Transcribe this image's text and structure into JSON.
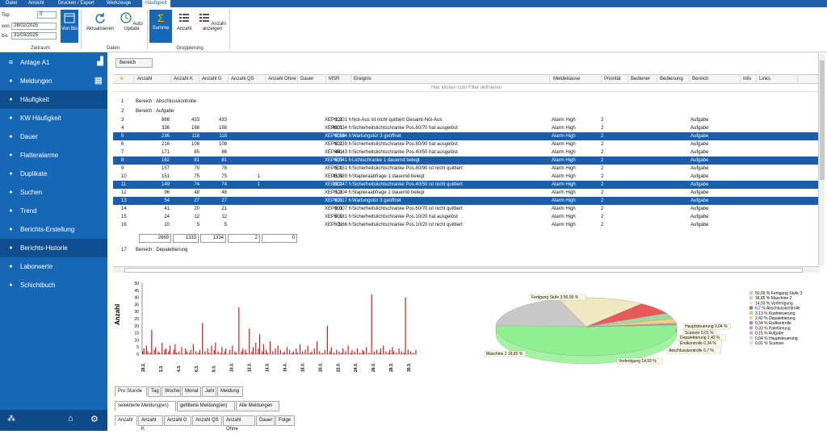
{
  "ribbon_tabs": [
    {
      "label": "Datei",
      "active": false
    },
    {
      "label": "Ansicht",
      "active": false
    },
    {
      "label": "Drucken / Export",
      "active": false
    },
    {
      "label": "Werkzeuge",
      "active": false
    },
    {
      "label": "Häufigkeit",
      "active": true
    }
  ],
  "zeitraum": {
    "top_label": "Top",
    "top_value": "0",
    "von_label": "von",
    "von_value": "28/02/2025",
    "bis_label": "bis",
    "bis_value": "31/03/2025",
    "vonbis_label": "Von Bis",
    "group_label": "Zeitraum"
  },
  "daten": {
    "aktualisieren": "Aktualisieren",
    "auto_update": "Auto Update",
    "group_label": "Daten"
  },
  "gruppierung": {
    "summe": "Summe",
    "anzahl": "Anzahl",
    "anzahl_anzeigen": "Anzahl anzeigen",
    "group_label": "Gruppierung"
  },
  "sidebar": {
    "title": "Anlage A1",
    "items": [
      {
        "label": "Meldungen",
        "icon": "bell-icon",
        "selected": false
      },
      {
        "label": "Häufigkeit",
        "icon": "bell-chart-icon",
        "selected": true
      },
      {
        "label": "KW Häufigkeit",
        "icon": "bell-chart-icon",
        "selected": false
      },
      {
        "label": "Dauer",
        "icon": "bell-clock-icon",
        "selected": false
      },
      {
        "label": "Flatteralarme",
        "icon": "bell-flutter-icon",
        "selected": false
      },
      {
        "label": "Duplikate",
        "icon": "bell-duplicate-icon",
        "selected": false
      },
      {
        "label": "Suchen",
        "icon": "bell-search-icon",
        "selected": false
      },
      {
        "label": "Trend",
        "icon": "trend-icon",
        "selected": false
      },
      {
        "label": "Berichts-Erstellung",
        "icon": "report-icon",
        "selected": false
      },
      {
        "label": "Berichts-Historie",
        "icon": "report-history-icon",
        "selected": true
      },
      {
        "label": "Laborwerte",
        "icon": "flask-icon",
        "selected": false
      },
      {
        "label": "Schichtbuch",
        "icon": "book-icon",
        "selected": false
      }
    ]
  },
  "grid": {
    "group_chip": "Bereich",
    "filter_hint": "Hier klicken zum Filter definieren",
    "columns": [
      "Anzahl",
      "Anzahl K",
      "Anzahl G",
      "Anzahl QS",
      "Anzahl Ohne",
      "Dauer",
      "MSR",
      "Ereignis",
      "Meldeklasse",
      "Priorität",
      "Bediener",
      "Bedienung",
      "Bereich",
      "Info",
      "Links"
    ],
    "group1": {
      "num": "1",
      "label": "Bereich : Abschlusskontrolle"
    },
    "group2": {
      "num": "2",
      "label": "Bereich : Aufgabe"
    },
    "rows": [
      {
        "n": "3",
        "a": "866",
        "k": "433",
        "g": "433",
        "qs": "",
        "dauer": "1,201 h",
        "msr": "XEP601",
        "ereignis": "Not-Aus ist nicht quittiert  Gesamt-Not-Aus",
        "klasse": "Alarm High",
        "prio": "2",
        "bereich": "Aufgabe",
        "sel": false
      },
      {
        "n": "4",
        "a": "336",
        "k": "168",
        "g": "168",
        "qs": "",
        "dauer": "63,034 h",
        "msr": "XEP601",
        "ereignis": "Sicherheitslichtschranke Pos.60/70 hat ausgelöst",
        "klasse": "Alarm High",
        "prio": "2",
        "bereich": "Aufgabe",
        "sel": false
      },
      {
        "n": "5",
        "a": "236",
        "k": "118",
        "g": "118",
        "qs": "",
        "dauer": "0,164 h",
        "msr": "XEP6010",
        "ereignis": "Wartungstür 3 geöffnet",
        "klasse": "Alarm High",
        "prio": "2",
        "bereich": "Aufgabe",
        "sel": true
      },
      {
        "n": "6",
        "a": "216",
        "k": "108",
        "g": "108",
        "qs": "",
        "dauer": "0,239 h",
        "msr": "XEP601",
        "ereignis": "Sicherheitslichtschranke Pos.80/90 hat ausgelöst",
        "klasse": "Alarm High",
        "prio": "2",
        "bereich": "Aufgabe",
        "sel": false
      },
      {
        "n": "7",
        "a": "171",
        "k": "85",
        "g": "86",
        "qs": "",
        "dauer": "44,43 h",
        "msr": "XEP601",
        "ereignis": "Sicherheitslichtschranke Pos.40/50 hat ausgelöst",
        "klasse": "Alarm High",
        "prio": "2",
        "bereich": "Aufgabe",
        "sel": false
      },
      {
        "n": "8",
        "a": "162",
        "k": "81",
        "g": "81",
        "qs": "",
        "dauer": "0,041 h",
        "msr": "XEP601",
        "ereignis": "Lichtschranke 1 dauernd belegt",
        "klasse": "Alarm High",
        "prio": "2",
        "bereich": "Aufgabe",
        "sel": true
      },
      {
        "n": "9",
        "a": "157",
        "k": "79",
        "g": "78",
        "qs": "",
        "dauer": "5,151 h",
        "msr": "XEP601",
        "ereignis": "Sicherheitslichtschranke Pos.80/90 ist nicht quittiert",
        "klasse": "Alarm High",
        "prio": "2",
        "bereich": "Aufgabe",
        "sel": false
      },
      {
        "n": "10",
        "a": "151",
        "k": "75",
        "g": "75",
        "qs": "1",
        "dauer": "11,889 h",
        "msr": "XEP601",
        "ereignis": "Stapleraabfrage 1 dauernd belegt",
        "klasse": "Alarm High",
        "prio": "2",
        "bereich": "Aufgabe",
        "sel": false
      },
      {
        "n": "11",
        "a": "149",
        "k": "74",
        "g": "74",
        "qs": "1",
        "dauer": "13,247 h",
        "msr": "XEP601",
        "ereignis": "Sicherheitslichtschranke Pos.40/50 ist nicht quittiert",
        "klasse": "Alarm High",
        "prio": "2",
        "bereich": "Aufgabe",
        "sel": true
      },
      {
        "n": "12",
        "a": "96",
        "k": "48",
        "g": "48",
        "qs": "",
        "dauer": "1,204 h",
        "msr": "XEP601",
        "ereignis": "Stapleraabfrage 2 dauernd belegt",
        "klasse": "Alarm High",
        "prio": "2",
        "bereich": "Aufgabe",
        "sel": false
      },
      {
        "n": "13",
        "a": "54",
        "k": "27",
        "g": "27",
        "qs": "",
        "dauer": "0,017 h",
        "msr": "XEP601",
        "ereignis": "Wartungstür 3 geöffnet",
        "klasse": "Alarm High",
        "prio": "2",
        "bereich": "Aufgabe",
        "sel": true
      },
      {
        "n": "14",
        "a": "41",
        "k": "20",
        "g": "21",
        "qs": "",
        "dauer": "8,007 h",
        "msr": "XEP601",
        "ereignis": "Sicherheitslichtschranke Pos.60/70 ist nicht quittiert",
        "klasse": "Alarm High",
        "prio": "2",
        "bereich": "Aufgabe",
        "sel": false
      },
      {
        "n": "15",
        "a": "24",
        "k": "12",
        "g": "12",
        "qs": "",
        "dauer": "0,181 h",
        "msr": "XEP601",
        "ereignis": "Sicherheitslichtschranke Pos.10/20 hat ausgelöst",
        "klasse": "Alarm High",
        "prio": "2",
        "bereich": "Aufgabe",
        "sel": false
      },
      {
        "n": "16",
        "a": "10",
        "k": "5",
        "g": "5",
        "qs": "",
        "dauer": "3,66 h",
        "msr": "XEP601",
        "ereignis": "Sicherheitslichtschranke Pos.10/20 ist nicht quittiert",
        "klasse": "Alarm High",
        "prio": "2",
        "bereich": "Aufgabe",
        "sel": false
      }
    ],
    "totals": {
      "a": "2669",
      "k": "1333",
      "g": "1334",
      "qs": "2",
      "ohne": "0"
    },
    "group17": {
      "num": "17",
      "label": "Bereich : Depalettierung"
    }
  },
  "chart_tabs": [
    "Pro Stunde",
    "Tag",
    "Woche",
    "Monat",
    "Jahr",
    "Meldung"
  ],
  "filter_tabs": [
    "selektierte Meldung(en)",
    "gefilterte Meldung(en)",
    "Alle Meldungen"
  ],
  "metric_tabs": [
    "Anzahl",
    "Anzahl K",
    "Anzahl G",
    "Anzahl QS",
    "Anzahl Ohne",
    "Dauer",
    "Folge"
  ],
  "chart_data": [
    {
      "type": "bar",
      "ylabel": "Anzahl",
      "ylim": [
        0,
        50
      ],
      "yticks": [
        "50",
        "45",
        "40",
        "35",
        "30",
        "25",
        "20",
        "15",
        "10",
        "5",
        "0"
      ],
      "xticks": [
        "28.2.",
        "2.3.",
        "4.3.",
        "6.3.",
        "8.3.",
        "10.3.",
        "12.3.",
        "14.3.",
        "16.3.",
        "18.3.",
        "20.3.",
        "22.3.",
        "24.3.",
        "26.3.",
        "28.3.",
        "30.3."
      ],
      "values": [
        2,
        4,
        0,
        6,
        2,
        0,
        1,
        17,
        0,
        3,
        5,
        0,
        2,
        1,
        0,
        8,
        0,
        3,
        4,
        0,
        2,
        6,
        0,
        0,
        3,
        7,
        1,
        0,
        2,
        0,
        5,
        0,
        0,
        4,
        2,
        0,
        1,
        3,
        0,
        7,
        0,
        2,
        0,
        1,
        3,
        0,
        22,
        0,
        2,
        0,
        4,
        1,
        0,
        6,
        0,
        3,
        8,
        0,
        2,
        0,
        1,
        5,
        0,
        2,
        4,
        0,
        0,
        3,
        0,
        6,
        0,
        2,
        1,
        0,
        33,
        0,
        2,
        4,
        0,
        3,
        1,
        0,
        18,
        0,
        2,
        5,
        0,
        8,
        0,
        4,
        14,
        0,
        2,
        7,
        0,
        3,
        1,
        0,
        9,
        0,
        2,
        0,
        4,
        0,
        6,
        0,
        3,
        0,
        1,
        2,
        0,
        5,
        0,
        3,
        0,
        1,
        2,
        0,
        4,
        1,
        0,
        7,
        0,
        2,
        0,
        3,
        0,
        6,
        0,
        1,
        2,
        0,
        4,
        0,
        9,
        0,
        2,
        0,
        1,
        0,
        3,
        0,
        20,
        0,
        2,
        5,
        0,
        1,
        0,
        3,
        0,
        2,
        0,
        1,
        4,
        0,
        2,
        0,
        6,
        0,
        1,
        3,
        0,
        2,
        0,
        4,
        0,
        1,
        0,
        3,
        2,
        0,
        5,
        0,
        1,
        0,
        42,
        0,
        2,
        0,
        3,
        0,
        1,
        4,
        0,
        6,
        0,
        2,
        0,
        1,
        3,
        0,
        5,
        2,
        0,
        1,
        0,
        4,
        0,
        2,
        0,
        1,
        40,
        0,
        3,
        0,
        2,
        0,
        1,
        0,
        3
      ],
      "color": "#d01010"
    },
    {
      "type": "pie",
      "slices": [
        {
          "label": "Fertigung Stufe 3",
          "value": 50.09,
          "color": "#8ef08e"
        },
        {
          "label": "Maschine 2",
          "value": 18.85,
          "color": "#c8c8c8"
        },
        {
          "label": "Vorfertigung",
          "value": 14.93,
          "color": "#f0e8c0"
        },
        {
          "label": "Abschlusskontrolle",
          "value": 6.7,
          "color": "#e85a5a"
        },
        {
          "label": "Kopfsteuerung",
          "value": 3.13,
          "color": "#a0d8a0"
        },
        {
          "label": "Depalettierung",
          "value": 2.42,
          "color": "#f4d080"
        },
        {
          "label": "Endkontrolle",
          "value": 0.34,
          "color": "#d070d0"
        },
        {
          "label": "Palettierung",
          "value": 0.33,
          "color": "#a0a0e8"
        },
        {
          "label": "Aufgabe",
          "value": 0.15,
          "color": "#e0a0e0"
        },
        {
          "label": "Hauptsteuerung",
          "value": 0.04,
          "color": "#b0e0e8"
        },
        {
          "label": "Scanner",
          "value": 0.01,
          "color": "#c0f0c0"
        }
      ],
      "callouts": [
        "Fertigung Stufe 3 50,09 %",
        "Maschine 2 18,85 %",
        "Vorfertigung 14,93 %",
        "Abschlusskontrolle 6,7 %",
        "Hauptsteuerung 0,04 %",
        "Scanner 0,01 %",
        "Depalettierung 2,42 %",
        "Endkontrolle 0,34 %"
      ],
      "legend": [
        "50,09 % Fertigung Stufe 3",
        "18,85 % Maschine 2",
        "14,93 % Vorfertigung",
        "6,7 % Abschlusskontrolle",
        "3,13 % Kopfsteuerung",
        "2,42 % Depalettierung",
        "0,34 % Endkontrolle",
        "0,33 % Palettierung",
        "0,15 % Aufgabe",
        "0,04 % Hauptsteuerung",
        "0,01 % Scanner"
      ]
    }
  ]
}
